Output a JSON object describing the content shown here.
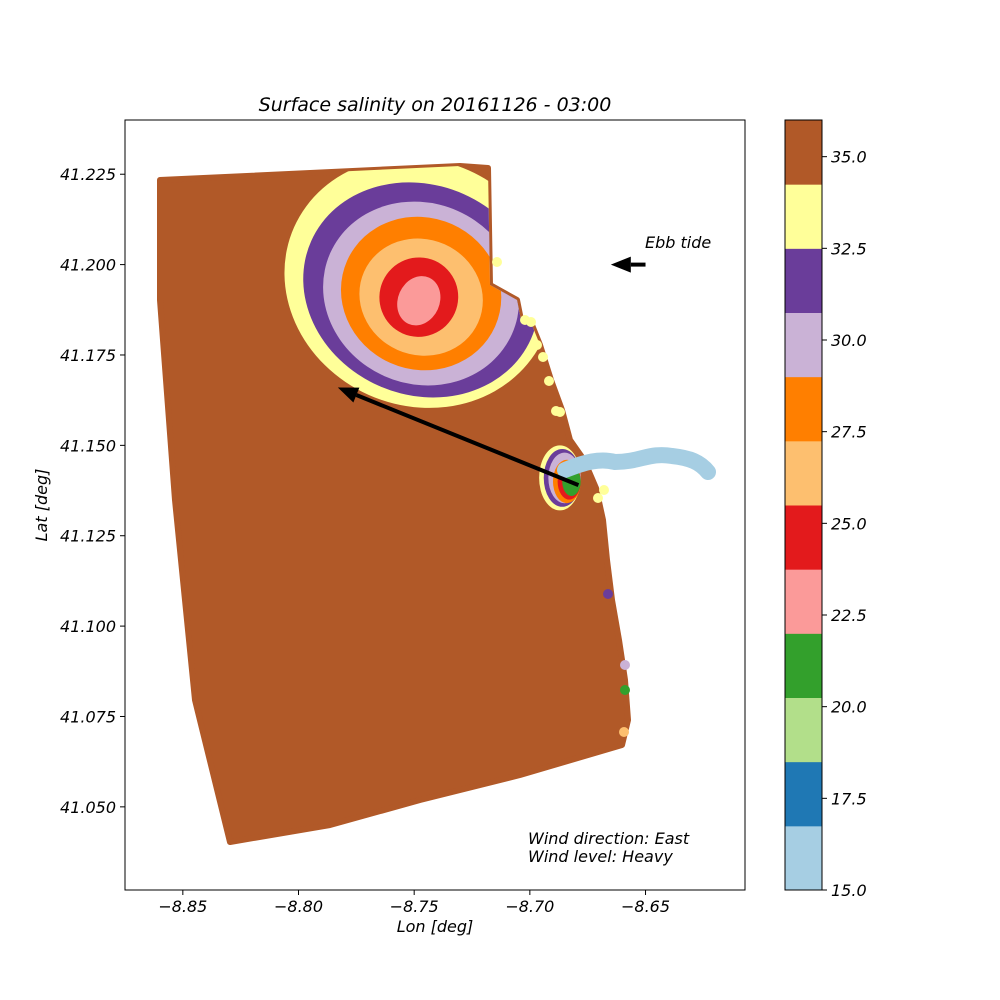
{
  "chart_data": {
    "type": "heatmap",
    "title": "Surface salinity on 20161126 - 03:00",
    "xlabel": "Lon [deg]",
    "ylabel": "Lat [deg]",
    "xlim": [
      -8.875,
      -8.607
    ],
    "ylim": [
      41.027,
      41.24
    ],
    "x_ticks": [
      -8.85,
      -8.8,
      -8.75,
      -8.7,
      -8.65
    ],
    "x_tick_labels": [
      "−8.85",
      "−8.80",
      "−8.75",
      "−8.70",
      "−8.65"
    ],
    "y_ticks": [
      41.05,
      41.075,
      41.1,
      41.125,
      41.15,
      41.175,
      41.2,
      41.225
    ],
    "y_tick_labels": [
      "41.050",
      "41.075",
      "41.100",
      "41.125",
      "41.150",
      "41.175",
      "41.200",
      "41.225"
    ],
    "grid": false,
    "colorbar": {
      "vmin": 15.0,
      "vmax": 36.0,
      "boundaries": [
        15.0,
        16.75,
        18.5,
        20.25,
        22.0,
        23.75,
        25.5,
        27.25,
        29.0,
        30.75,
        32.5,
        34.25,
        36.0
      ],
      "colors": [
        "#a6cee3",
        "#1f78b4",
        "#b2df8a",
        "#33a02c",
        "#fb9a99",
        "#e31a1c",
        "#fdbf6f",
        "#ff7f00",
        "#cab2d6",
        "#6a3d9a",
        "#ffff99",
        "#b15928"
      ],
      "ticks": [
        15.0,
        17.5,
        20.0,
        22.5,
        25.0,
        27.5,
        30.0,
        32.5,
        35.0
      ],
      "tick_labels": [
        "15.0",
        "17.5",
        "20.0",
        "22.5",
        "25.0",
        "27.5",
        "30.0",
        "32.5",
        "35.0"
      ]
    },
    "plume_levels": [
      {
        "salinity": 33.5,
        "color": "#ffff99",
        "center": [
          -8.748,
          41.195
        ],
        "rx": 0.059,
        "ry": 0.034
      },
      {
        "salinity": 31.5,
        "color": "#6a3d9a",
        "center": [
          -8.747,
          41.193
        ],
        "rx": 0.052,
        "ry": 0.029
      },
      {
        "salinity": 30.0,
        "color": "#cab2d6",
        "center": [
          -8.747,
          41.192
        ],
        "rx": 0.043,
        "ry": 0.025
      },
      {
        "salinity": 28.0,
        "color": "#ff7f00",
        "center": [
          -8.747,
          41.192
        ],
        "rx": 0.035,
        "ry": 0.021
      },
      {
        "salinity": 26.5,
        "color": "#fdbf6f",
        "center": [
          -8.747,
          41.191
        ],
        "rx": 0.027,
        "ry": 0.016
      },
      {
        "salinity": 24.5,
        "color": "#e31a1c",
        "center": [
          -8.748,
          41.191
        ],
        "rx": 0.017,
        "ry": 0.011
      },
      {
        "salinity": 23.0,
        "color": "#fb9a99",
        "center": [
          -8.748,
          41.19
        ],
        "rx": 0.009,
        "ry": 0.007
      }
    ],
    "mouth_levels": [
      {
        "color": "#ffff99",
        "center": [
          -8.687,
          41.141
        ],
        "rx": 0.009,
        "ry": 0.009
      },
      {
        "color": "#6a3d9a",
        "center": [
          -8.686,
          41.141
        ],
        "rx": 0.008,
        "ry": 0.008
      },
      {
        "color": "#cab2d6",
        "center": [
          -8.685,
          41.141
        ],
        "rx": 0.007,
        "ry": 0.007
      },
      {
        "color": "#ff7f00",
        "center": [
          -8.684,
          41.14
        ],
        "rx": 0.006,
        "ry": 0.006
      },
      {
        "color": "#e31a1c",
        "center": [
          -8.683,
          41.14
        ],
        "rx": 0.005,
        "ry": 0.005
      },
      {
        "color": "#33a02c",
        "center": [
          -8.682,
          41.14
        ],
        "rx": 0.004,
        "ry": 0.004
      }
    ],
    "river_salinity": 15.0,
    "arrows": [
      {
        "name": "wind",
        "from": [
          -8.679,
          41.139
        ],
        "to": [
          -8.783,
          41.166
        ]
      },
      {
        "name": "tide",
        "from": [
          -8.65,
          41.2
        ],
        "to": [
          -8.665,
          41.2
        ]
      }
    ],
    "annotations": {
      "tide_label": "Ebb tide",
      "wind_direction": "Wind direction: East",
      "wind_level": "Wind level: Heavy"
    }
  }
}
